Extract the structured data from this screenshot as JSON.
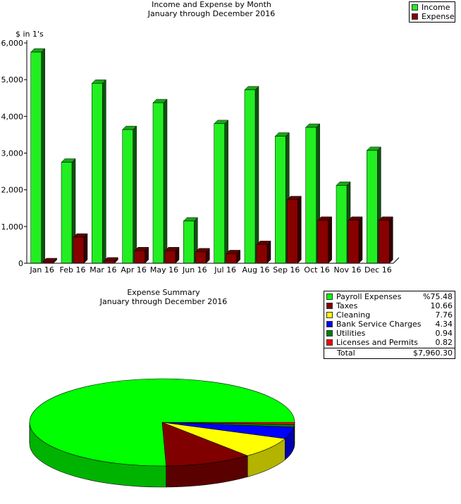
{
  "colors": {
    "income": "#22ee22",
    "expense": "#880000"
  },
  "bar_chart": {
    "title": "Income and Expense by Month",
    "subtitle": "January through December 2016",
    "ylabel": "$ in 1's",
    "yticks": [
      "0",
      "1,000",
      "2,000",
      "3,000",
      "4,000",
      "5,000",
      "6,000"
    ],
    "legend": [
      {
        "name": "Income",
        "color": "#22ee22"
      },
      {
        "name": "Expense",
        "color": "#880000"
      }
    ]
  },
  "pie_chart": {
    "title": "Expense Summary",
    "subtitle": "January through December 2016",
    "legend_rows": [
      {
        "label": "Payroll Expenses",
        "value": "%75.48",
        "color": "#00ff00"
      },
      {
        "label": "Taxes",
        "value": "10.66",
        "color": "#800000"
      },
      {
        "label": "Cleaning",
        "value": "7.76",
        "color": "#ffff00"
      },
      {
        "label": "Bank Service Charges",
        "value": "4.34",
        "color": "#0000ff"
      },
      {
        "label": "Utilities",
        "value": "0.94",
        "color": "#008000"
      },
      {
        "label": "Licenses and Permits",
        "value": "0.82",
        "color": "#ff0000"
      }
    ],
    "total_label": "Total",
    "total_value": "$7,960.30"
  },
  "chart_data": [
    {
      "type": "bar",
      "title": "Income and Expense by Month",
      "subtitle": "January through December 2016",
      "xlabel": "",
      "ylabel": "$ in 1's",
      "ylim": [
        0,
        6000
      ],
      "categories": [
        "Jan 16",
        "Feb 16",
        "Mar 16",
        "Apr 16",
        "May 16",
        "Jun 16",
        "Jul 16",
        "Aug 16",
        "Sep 16",
        "Oct 16",
        "Nov 16",
        "Dec 16"
      ],
      "series": [
        {
          "name": "Income",
          "values": [
            5750,
            2750,
            4900,
            3640,
            4370,
            1150,
            3800,
            4720,
            3460,
            3700,
            2120,
            3070
          ]
        },
        {
          "name": "Expense",
          "values": [
            40,
            710,
            60,
            340,
            340,
            310,
            260,
            510,
            1730,
            1170,
            1170,
            1170
          ]
        }
      ],
      "legend_position": "top-right",
      "grid": false
    },
    {
      "type": "pie",
      "title": "Expense Summary",
      "subtitle": "January through December 2016",
      "labels": [
        "Payroll Expenses",
        "Taxes",
        "Cleaning",
        "Bank Service Charges",
        "Utilities",
        "Licenses and Permits"
      ],
      "values": [
        75.48,
        10.66,
        7.76,
        4.34,
        0.94,
        0.82
      ],
      "total": "$7,960.30",
      "legend_position": "top-right"
    }
  ]
}
